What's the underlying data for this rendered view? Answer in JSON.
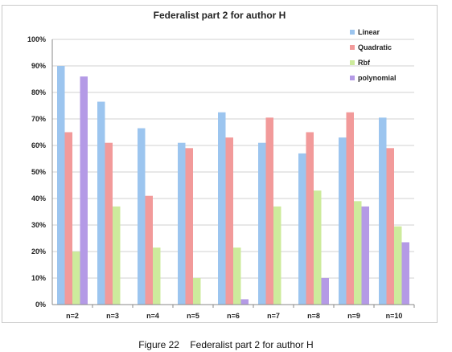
{
  "caption": "Figure 22    Federalist part 2 for author H",
  "chart_data": {
    "type": "bar",
    "title": "Federalist part 2 for author H",
    "xlabel": "",
    "ylabel": "",
    "ylim": [
      0,
      100
    ],
    "y_ticks": [
      0,
      10,
      20,
      30,
      40,
      50,
      60,
      70,
      80,
      90,
      100
    ],
    "y_tick_suffix": "%",
    "grid": true,
    "legend_position": "top-right",
    "categories": [
      "n=2",
      "n=3",
      "n=4",
      "n=5",
      "n=6",
      "n=7",
      "n=8",
      "n=9",
      "n=10"
    ],
    "series": [
      {
        "name": "Linear",
        "color": "#9cc5ef",
        "values": [
          90,
          76.5,
          66.5,
          61,
          72.5,
          61,
          57,
          63,
          70.5
        ]
      },
      {
        "name": "Quadratic",
        "color": "#f29a9a",
        "values": [
          65,
          61,
          41,
          59,
          63,
          70.5,
          65,
          72.5,
          59
        ]
      },
      {
        "name": "Rbf",
        "color": "#cdeb9c",
        "values": [
          20,
          37,
          21.5,
          10,
          21.5,
          37,
          43,
          39,
          29.5
        ]
      },
      {
        "name": "polynomial",
        "color": "#b49ae6",
        "values": [
          86,
          0,
          0,
          0,
          2,
          0,
          10,
          37,
          23.5
        ]
      }
    ]
  }
}
